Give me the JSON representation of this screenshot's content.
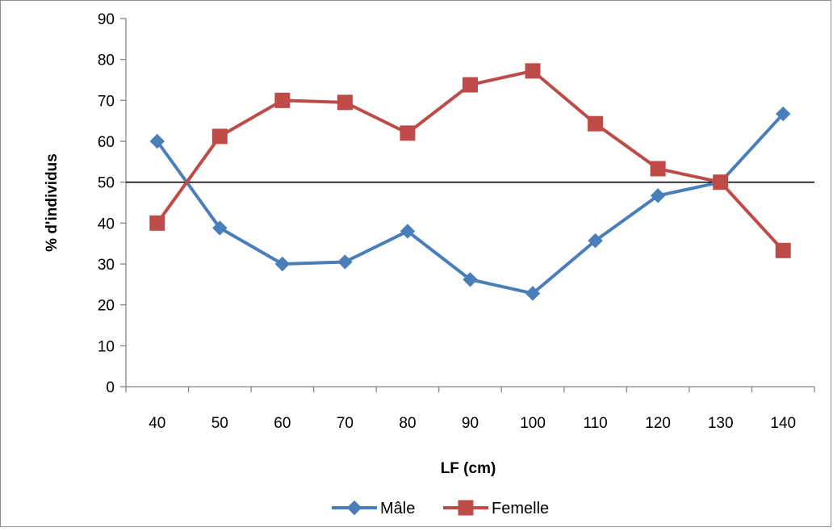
{
  "chart_data": {
    "type": "line",
    "title": "",
    "xlabel": "LF (cm)",
    "ylabel": "% d'individus",
    "categories": [
      "40",
      "50",
      "60",
      "70",
      "80",
      "90",
      "100",
      "110",
      "120",
      "130",
      "140"
    ],
    "ylim": [
      0,
      90
    ],
    "yticks": [
      "0",
      "10",
      "20",
      "30",
      "40",
      "50",
      "60",
      "70",
      "80",
      "90"
    ],
    "reference_line": 50,
    "grid": false,
    "legend_position": "bottom",
    "series": [
      {
        "name": "Mâle",
        "color": "#4a7ebb",
        "marker": "diamond",
        "values": [
          60,
          38.8,
          30,
          30.5,
          38,
          26.2,
          22.8,
          35.7,
          46.7,
          50,
          66.7
        ]
      },
      {
        "name": "Femelle",
        "color": "#be4b48",
        "marker": "square",
        "values": [
          40,
          61.2,
          70,
          69.5,
          62,
          73.8,
          77.2,
          64.3,
          53.3,
          50,
          33.3
        ]
      }
    ]
  }
}
